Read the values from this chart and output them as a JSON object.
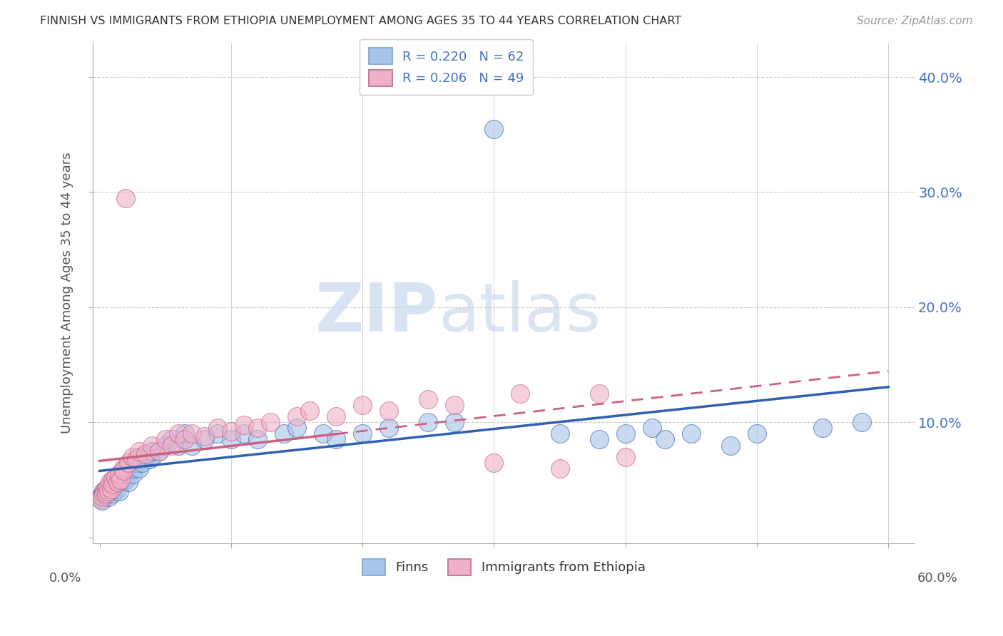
{
  "title": "FINNISH VS IMMIGRANTS FROM ETHIOPIA UNEMPLOYMENT AMONG AGES 35 TO 44 YEARS CORRELATION CHART",
  "source": "Source: ZipAtlas.com",
  "ylabel": "Unemployment Among Ages 35 to 44 years",
  "legend_r1": "R = 0.220   N = 62",
  "legend_r2": "R = 0.206   N = 49",
  "legend_label1": "Finns",
  "legend_label2": "Immigrants from Ethiopia",
  "color_finns": "#a8c4e8",
  "color_ethiopia": "#f0b0c8",
  "color_line_finns": "#3060b0",
  "color_line_ethiopia": "#d06080",
  "watermark_zip": "ZIP",
  "watermark_atlas": "atlas",
  "finns_x": [
    0.001,
    0.002,
    0.003,
    0.003,
    0.004,
    0.005,
    0.005,
    0.006,
    0.007,
    0.008,
    0.009,
    0.01,
    0.01,
    0.012,
    0.013,
    0.015,
    0.015,
    0.016,
    0.018,
    0.02,
    0.02,
    0.022,
    0.025,
    0.025,
    0.028,
    0.03,
    0.03,
    0.032,
    0.035,
    0.038,
    0.04,
    0.04,
    0.045,
    0.05,
    0.055,
    0.06,
    0.065,
    0.07,
    0.08,
    0.09,
    0.1,
    0.11,
    0.12,
    0.14,
    0.15,
    0.17,
    0.18,
    0.2,
    0.22,
    0.25,
    0.27,
    0.3,
    0.35,
    0.38,
    0.4,
    0.42,
    0.43,
    0.45,
    0.48,
    0.5,
    0.55,
    0.58
  ],
  "finns_y": [
    0.035,
    0.032,
    0.038,
    0.04,
    0.036,
    0.042,
    0.038,
    0.04,
    0.035,
    0.045,
    0.04,
    0.05,
    0.038,
    0.045,
    0.042,
    0.05,
    0.04,
    0.055,
    0.05,
    0.05,
    0.06,
    0.048,
    0.055,
    0.06,
    0.065,
    0.06,
    0.07,
    0.065,
    0.07,
    0.068,
    0.07,
    0.075,
    0.075,
    0.08,
    0.085,
    0.08,
    0.09,
    0.08,
    0.085,
    0.09,
    0.085,
    0.09,
    0.085,
    0.09,
    0.095,
    0.09,
    0.085,
    0.09,
    0.095,
    0.1,
    0.1,
    0.355,
    0.09,
    0.085,
    0.09,
    0.095,
    0.085,
    0.09,
    0.08,
    0.09,
    0.095,
    0.1
  ],
  "ethiopia_x": [
    0.001,
    0.002,
    0.003,
    0.004,
    0.005,
    0.005,
    0.006,
    0.007,
    0.008,
    0.009,
    0.01,
    0.01,
    0.012,
    0.014,
    0.015,
    0.016,
    0.018,
    0.018,
    0.02,
    0.022,
    0.025,
    0.028,
    0.03,
    0.035,
    0.04,
    0.045,
    0.05,
    0.055,
    0.06,
    0.065,
    0.07,
    0.08,
    0.09,
    0.1,
    0.11,
    0.12,
    0.13,
    0.15,
    0.16,
    0.18,
    0.2,
    0.22,
    0.25,
    0.27,
    0.3,
    0.32,
    0.35,
    0.38,
    0.4
  ],
  "ethiopia_y": [
    0.033,
    0.036,
    0.038,
    0.04,
    0.042,
    0.038,
    0.044,
    0.04,
    0.048,
    0.042,
    0.05,
    0.046,
    0.052,
    0.048,
    0.055,
    0.05,
    0.06,
    0.058,
    0.295,
    0.065,
    0.07,
    0.068,
    0.075,
    0.072,
    0.08,
    0.075,
    0.085,
    0.08,
    0.09,
    0.085,
    0.09,
    0.088,
    0.095,
    0.092,
    0.098,
    0.095,
    0.1,
    0.105,
    0.11,
    0.105,
    0.115,
    0.11,
    0.12,
    0.115,
    0.065,
    0.125,
    0.06,
    0.125,
    0.07
  ],
  "xlim": [
    -0.005,
    0.62
  ],
  "ylim": [
    -0.005,
    0.43
  ],
  "x_ticks": [
    0.0,
    0.1,
    0.2,
    0.3,
    0.4,
    0.5,
    0.6
  ],
  "y_ticks": [
    0.0,
    0.1,
    0.2,
    0.3,
    0.4
  ],
  "y_tick_labels": [
    "",
    "10.0%",
    "20.0%",
    "30.0%",
    "40.0%"
  ]
}
